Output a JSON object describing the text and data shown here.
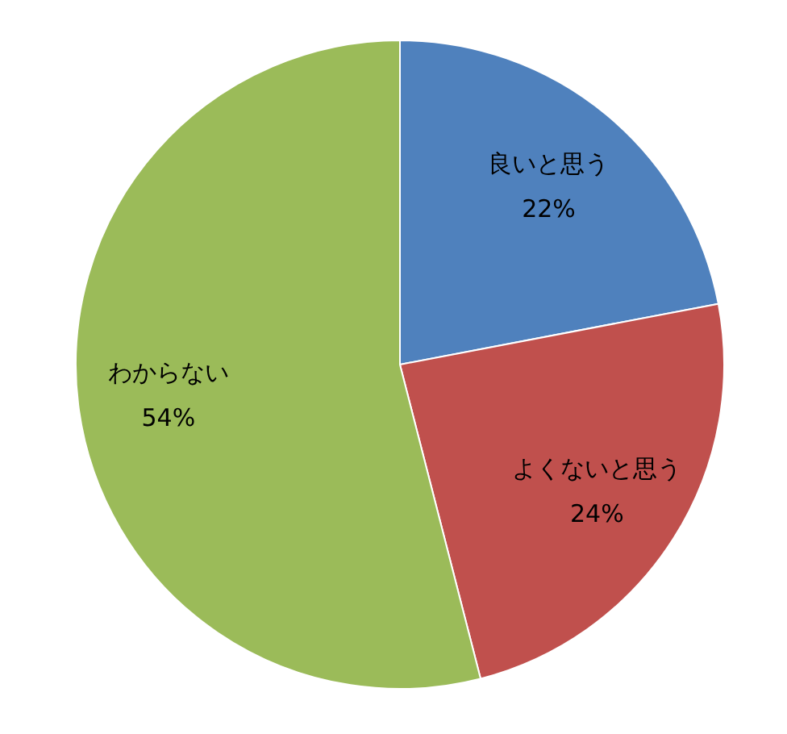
{
  "chart_data": {
    "type": "pie",
    "categories": [
      "良いと思う",
      "よくないと思う",
      "わからない"
    ],
    "values": [
      22,
      24,
      54
    ],
    "colors": [
      "#4f81bd",
      "#c0504d",
      "#9bbb59"
    ],
    "value_labels": [
      "22%",
      "24%",
      "54%"
    ],
    "legend": false
  }
}
